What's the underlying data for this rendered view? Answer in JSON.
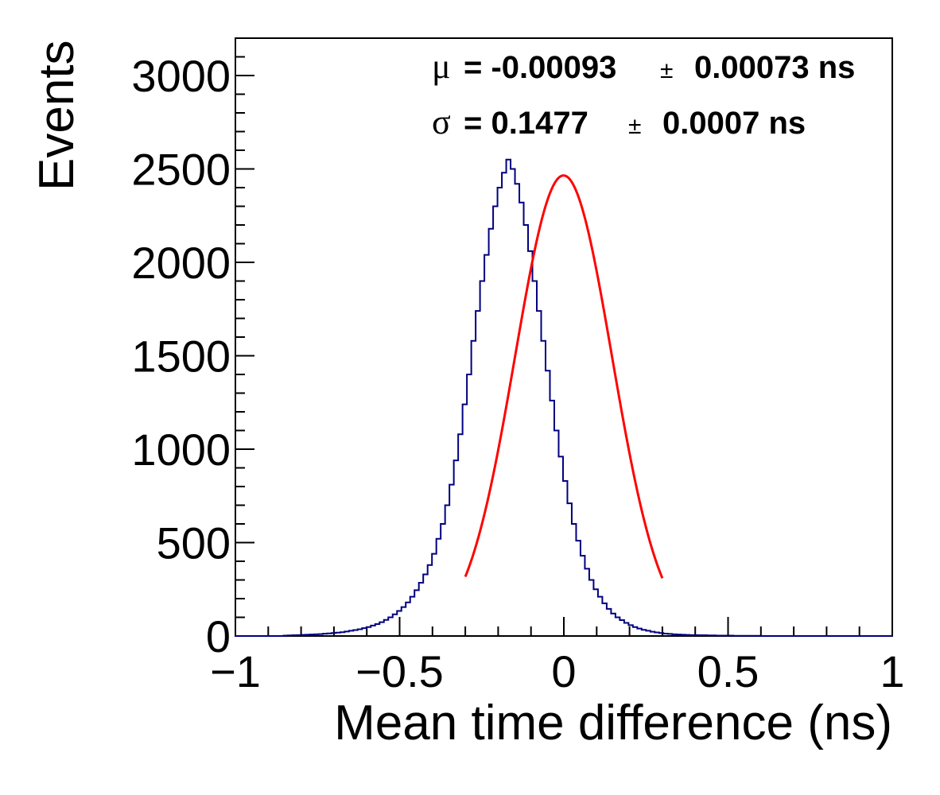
{
  "chart_data": {
    "type": "histogram",
    "xlabel": "Mean time difference (ns)",
    "ylabel": "Events",
    "xlim": [
      -1,
      1
    ],
    "ylim": [
      0,
      3200
    ],
    "x_ticks": [
      -1,
      -0.5,
      0,
      0.5,
      1
    ],
    "x_tick_labels": [
      "−1",
      "−0.5",
      "0",
      "0.5",
      "1"
    ],
    "y_ticks": [
      0,
      500,
      1000,
      1500,
      2000,
      2500,
      3000
    ],
    "y_tick_labels": [
      "0",
      "500",
      "1000",
      "1500",
      "2000",
      "2500",
      "3000"
    ],
    "grid": false,
    "histogram": {
      "color": "#00007f",
      "bin_width": 0.0133,
      "x_start": -1.0,
      "values": [
        0,
        0,
        0,
        0,
        0,
        0,
        0,
        0,
        0,
        0,
        0,
        2,
        3,
        4,
        5,
        6,
        7,
        8,
        9,
        10,
        12,
        14,
        16,
        18,
        20,
        24,
        28,
        32,
        36,
        42,
        48,
        56,
        64,
        74,
        86,
        100,
        116,
        134,
        155,
        180,
        210,
        245,
        285,
        330,
        380,
        440,
        520,
        600,
        700,
        810,
        940,
        1080,
        1240,
        1400,
        1580,
        1740,
        1900,
        2040,
        2180,
        2300,
        2400,
        2480,
        2550,
        2500,
        2420,
        2320,
        2200,
        2060,
        1900,
        1740,
        1580,
        1420,
        1260,
        1100,
        960,
        830,
        710,
        600,
        510,
        430,
        360,
        300,
        250,
        210,
        175,
        145,
        120,
        100,
        85,
        70,
        58,
        48,
        40,
        33,
        28,
        23,
        19,
        16,
        13,
        11,
        9,
        8,
        7,
        6,
        5,
        5,
        4,
        4,
        3,
        3,
        2,
        2,
        2,
        2,
        1,
        1,
        1,
        1,
        1,
        1,
        0,
        0,
        0,
        0,
        0,
        0,
        0,
        0,
        0,
        0,
        0,
        0,
        0,
        0,
        0,
        0,
        0,
        0,
        0,
        0,
        0,
        0,
        0,
        0,
        0,
        0,
        0,
        0,
        0,
        0,
        0,
        0,
        0,
        0,
        0
      ]
    },
    "fit": {
      "type": "gaussian",
      "color": "#ff0000",
      "amplitude": 2465,
      "mean": -0.00093,
      "sigma": 0.1477,
      "range": [
        -0.3,
        0.3
      ]
    },
    "stats": [
      {
        "symbol": "μ",
        "text": "= -0.00093",
        "pm": "±",
        "error": "0.00073 ns"
      },
      {
        "symbol": "σ",
        "text": "= 0.1477",
        "pm": "±",
        "error": "0.0007 ns"
      }
    ]
  }
}
